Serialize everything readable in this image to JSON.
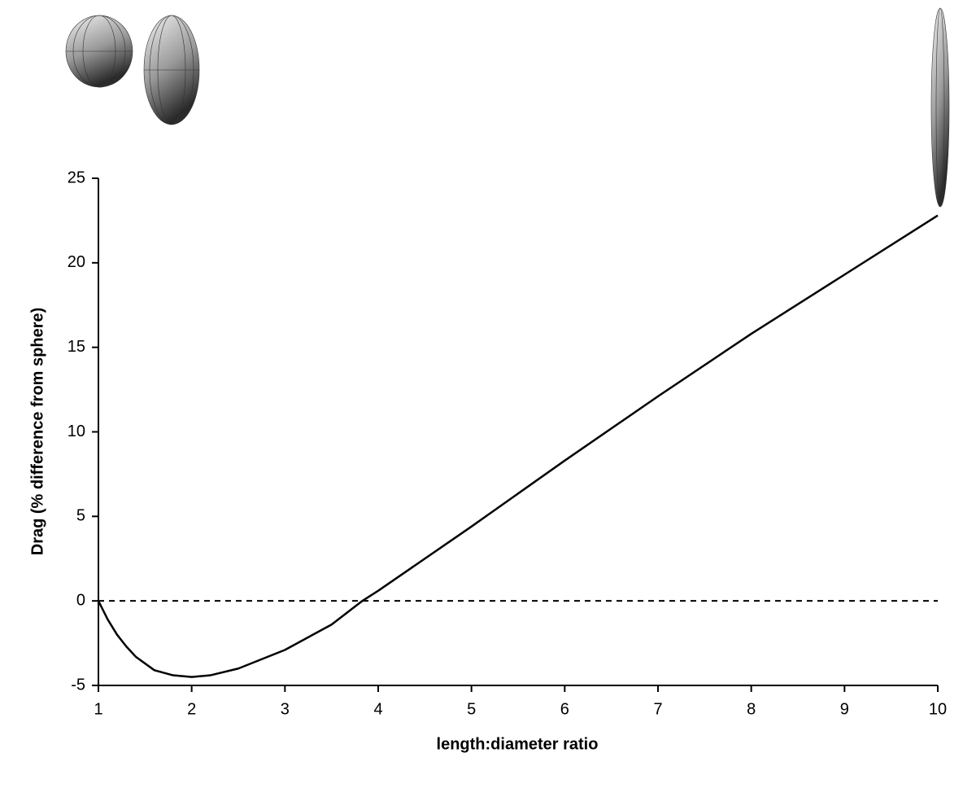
{
  "chart_data": {
    "type": "line",
    "x_label": "length:diameter ratio",
    "y_label": "Drag (% difference from sphere)",
    "x": [
      1,
      1.1,
      1.2,
      1.3,
      1.4,
      1.6,
      1.8,
      2.0,
      2.2,
      2.5,
      3,
      3.5,
      3.83,
      4,
      5,
      6,
      7,
      8,
      9,
      10
    ],
    "values": [
      0,
      -1.1,
      -2.0,
      -2.7,
      -3.3,
      -4.1,
      -4.4,
      -4.5,
      -4.4,
      -4.0,
      -2.9,
      -1.4,
      0,
      0.6,
      4.4,
      8.3,
      12.1,
      15.8,
      19.3,
      22.8
    ],
    "color": "#000000",
    "xlim": [
      1,
      10
    ],
    "xticks": [
      1,
      2,
      3,
      4,
      5,
      6,
      7,
      8,
      9,
      10
    ],
    "ylim": [
      -5,
      25
    ],
    "yticks": [
      -5,
      0,
      5,
      10,
      15,
      20,
      25
    ],
    "reference_line": 0,
    "grid": false
  }
}
